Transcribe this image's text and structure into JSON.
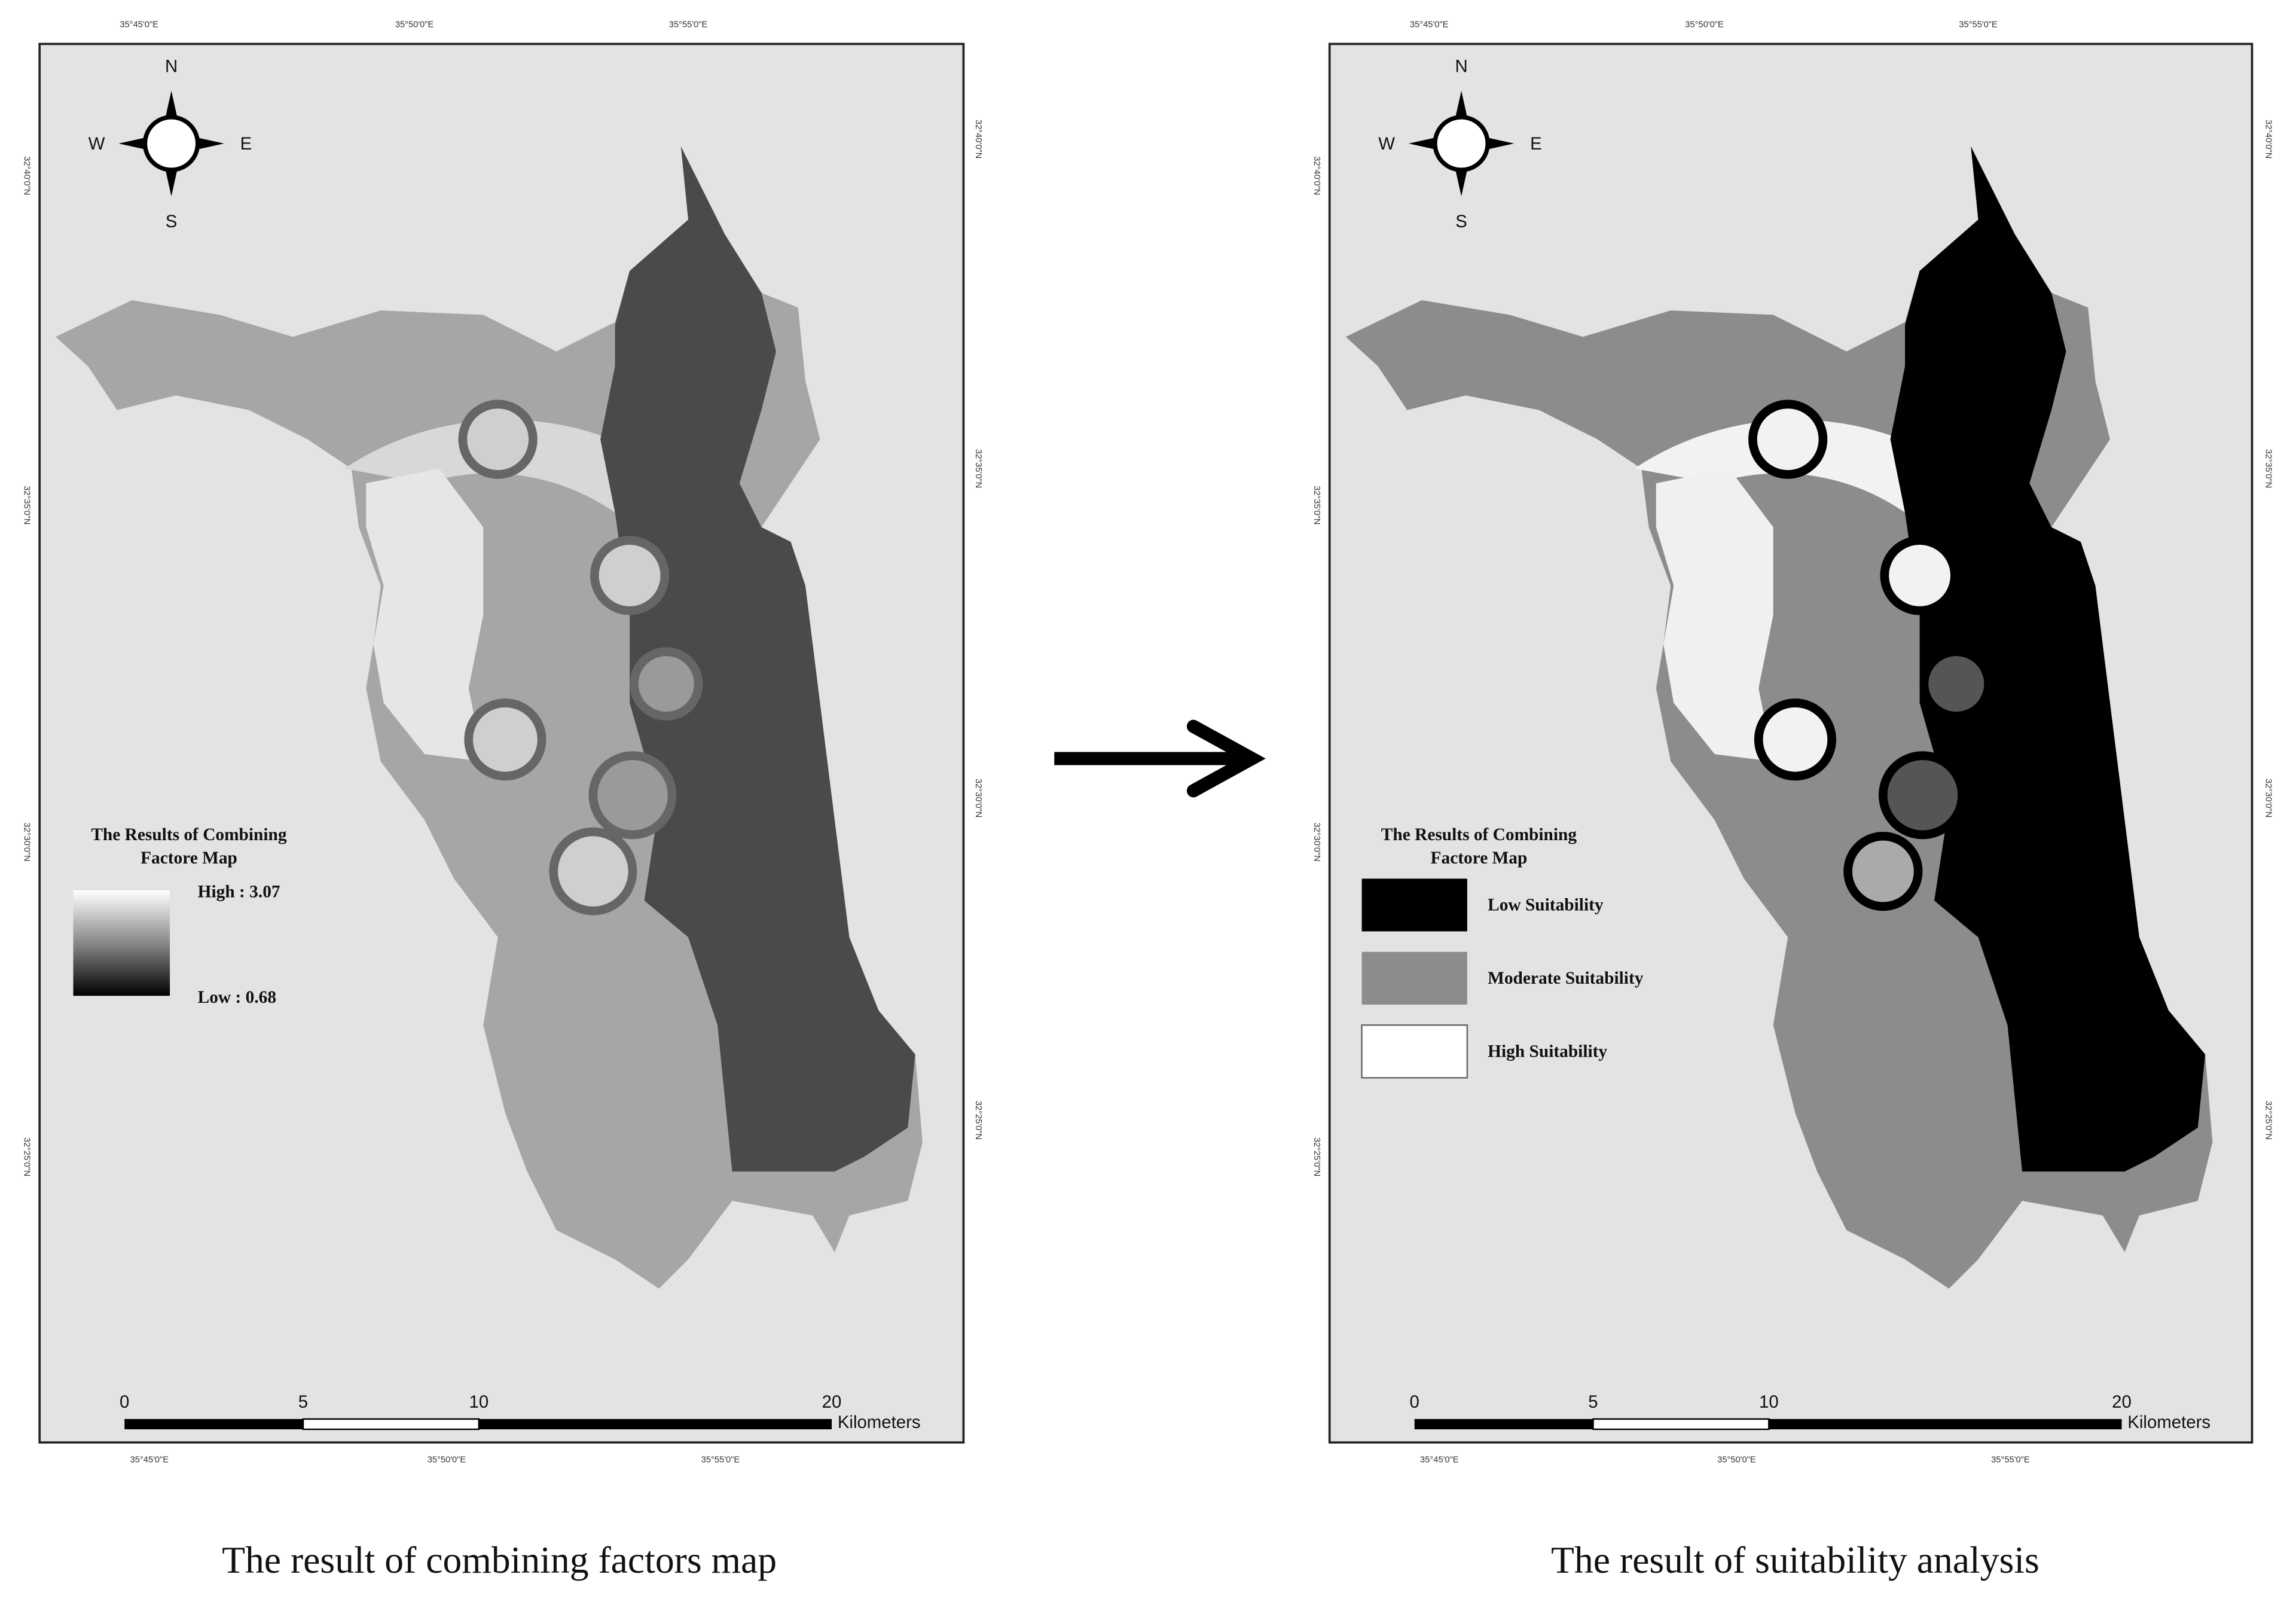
{
  "panels": [
    {
      "graticule": {
        "top": [
          "35°45'0\"E",
          "35°50'0\"E",
          "35°55'0\"E"
        ],
        "bottom": [
          "35°45'0\"E",
          "35°50'0\"E",
          "35°55'0\"E"
        ],
        "left": [
          "32°40'0\"N",
          "32°35'0\"N",
          "32°30'0\"N",
          "32°25'0\"N"
        ],
        "right": [
          "32°40'0\"N",
          "32°35'0\"N",
          "32°30'0\"N",
          "32°25'0\"N"
        ]
      },
      "compass": {
        "n": "N",
        "s": "S",
        "w": "W",
        "e": "E"
      },
      "legend": {
        "title": [
          "The Results of Combining",
          "Factore Map"
        ],
        "items": [
          "High : 3.07",
          "Low : 0.68"
        ]
      },
      "scale_bar": {
        "labels": [
          "0",
          "5",
          "10",
          "20"
        ],
        "unit": "Kilometers"
      },
      "caption": "The result of combining factors map"
    },
    {
      "graticule": {
        "top": [
          "35°45'0\"E",
          "35°50'0\"E",
          "35°55'0\"E"
        ],
        "bottom": [
          "35°45'0\"E",
          "35°50'0\"E",
          "35°55'0\"E"
        ],
        "left": [
          "32°40'0\"N",
          "32°35'0\"N",
          "32°30'0\"N",
          "32°25'0\"N"
        ],
        "right": [
          "32°40'0\"N",
          "32°35'0\"N",
          "32°30'0\"N",
          "32°25'0\"N"
        ]
      },
      "compass": {
        "n": "N",
        "s": "S",
        "w": "W",
        "e": "E"
      },
      "legend": {
        "title": [
          "The Results of Combining",
          "Factore Map"
        ],
        "items": [
          "Low Suitability",
          "Moderate Suitability",
          "High Suitability"
        ]
      },
      "scale_bar": {
        "labels": [
          "0",
          "5",
          "10",
          "20"
        ],
        "unit": "Kilometers"
      },
      "caption": "The result of suitability analysis"
    }
  ]
}
